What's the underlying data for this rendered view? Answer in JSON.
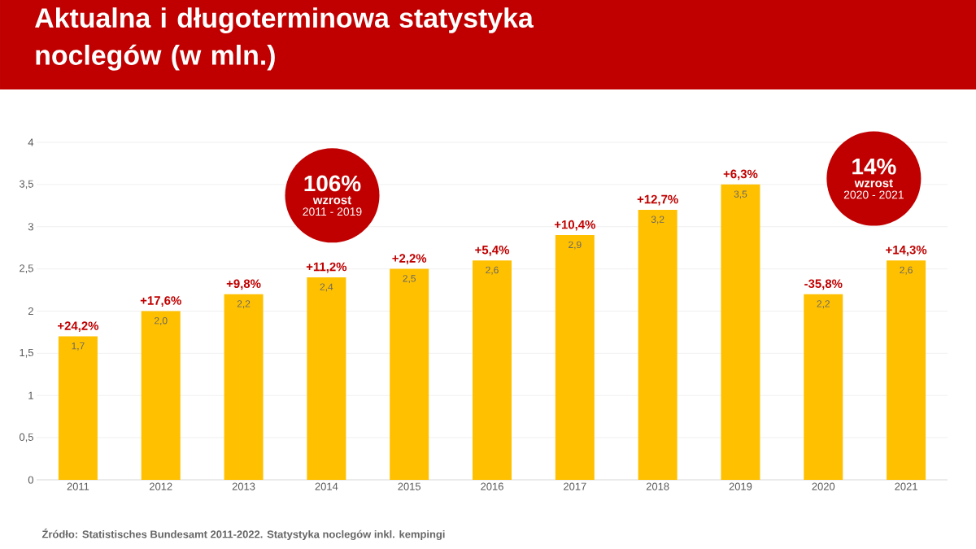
{
  "chart_data": {
    "type": "bar",
    "title": "Aktualna i długoterminowa statystyka noclegów (w mln.)",
    "categories": [
      "2011",
      "2012",
      "2013",
      "2014",
      "2015",
      "2016",
      "2017",
      "2018",
      "2019",
      "2020",
      "2021"
    ],
    "values": [
      1.7,
      2.0,
      2.2,
      2.4,
      2.5,
      2.6,
      2.9,
      3.2,
      3.5,
      2.2,
      2.6
    ],
    "value_labels": [
      "1,7",
      "2,0",
      "2,2",
      "2,4",
      "2,5",
      "2,6",
      "2,9",
      "3,2",
      "3,5",
      "2,2",
      "2,6"
    ],
    "color": "#ffc000",
    "ylim": [
      0,
      4
    ],
    "yticks": [
      0,
      {
        "value": 0.5,
        "label": "0,5"
      },
      1,
      {
        "value": 1.5,
        "label": "1,5"
      },
      2,
      {
        "value": 2.5,
        "label": "2,5"
      },
      3,
      {
        "value": 3.5,
        "label": "3,5"
      },
      4
    ],
    "grid": "y",
    "annotations": [
      {
        "text": "+24,2%",
        "x": "2011",
        "y": 1.7
      },
      {
        "text": "+17,6%",
        "x": "2012",
        "y": 2.0
      },
      {
        "text": "+9,8%",
        "x": "2013",
        "y": 2.2
      },
      {
        "text": "+11,2%",
        "x": "2014",
        "y": 2.4
      },
      {
        "text": "+2,2%",
        "x": "2015",
        "y": 2.5
      },
      {
        "text": "+5,4%",
        "x": "2016",
        "y": 2.6
      },
      {
        "text": "+10,4%",
        "x": "2017",
        "y": 2.9
      },
      {
        "text": "+12,7%",
        "x": "2018",
        "y": 3.2
      },
      {
        "text": "+6,3%",
        "x": "2019",
        "y": 3.5
      },
      {
        "text": "-35,8%",
        "x": "2020",
        "y": 2.2
      },
      {
        "text": "+14,3%",
        "x": "2021",
        "y": 2.6
      },
      "106%",
      "wzrost",
      "2011 - 2019",
      "14%",
      "wzrost",
      "2020 - 2021",
      "Źródło: Statistisches Bundesamt 2011-2022. Statystyka noclegów inkl. kempingi"
    ]
  }
}
